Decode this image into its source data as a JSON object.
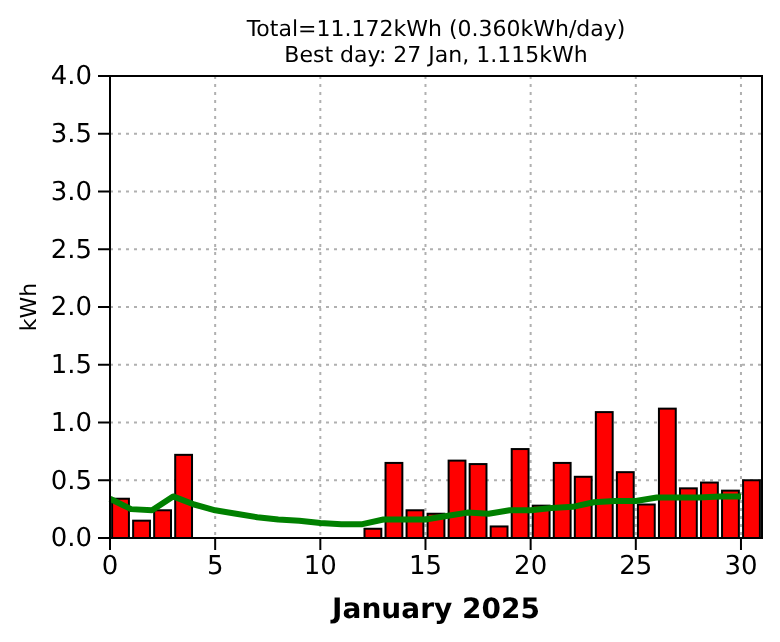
{
  "chart_data": {
    "type": "bar",
    "title": "Total=11.172kWh (0.360kWh/day)",
    "subtitle": "Best day: 27 Jan, 1.115kWh",
    "xlabel": "January 2025",
    "ylabel": "kWh",
    "xlim": [
      0,
      31
    ],
    "xticks": [
      0,
      5,
      10,
      15,
      20,
      25,
      30
    ],
    "ylim": [
      0,
      4
    ],
    "yticks": [
      {
        "value": 0,
        "label": "0.0"
      },
      {
        "value": 0.5,
        "label": "0.5"
      },
      {
        "value": 1,
        "label": "1.0"
      },
      {
        "value": 1.5,
        "label": "1.5"
      },
      {
        "value": 2,
        "label": "2.0"
      },
      {
        "value": 2.5,
        "label": "2.5"
      },
      {
        "value": 3,
        "label": "3.0"
      },
      {
        "value": 3.5,
        "label": "3.5"
      },
      {
        "value": 4,
        "label": "4.0"
      }
    ],
    "grid": true,
    "series": [
      {
        "color": "#ff0000",
        "x": [
          0.5,
          1.5,
          2.5,
          3.5,
          4.5,
          5.5,
          6.5,
          7.5,
          8.5,
          9.5,
          10.5,
          11.5,
          12.5,
          13.5,
          14.5,
          15.5,
          16.5,
          17.5,
          18.5,
          19.5,
          20.5,
          21.5,
          22.5,
          23.5,
          24.5,
          25.5,
          26.5,
          27.5,
          28.5,
          29.5,
          30.5
        ],
        "values": [
          0.34,
          0.15,
          0.24,
          0.72,
          0,
          0,
          0,
          0,
          0,
          0,
          0,
          0,
          0.08,
          0.65,
          0.24,
          0.21,
          0.67,
          0.64,
          0.1,
          0.77,
          0.28,
          0.65,
          0.53,
          1.09,
          0.57,
          0.29,
          1.12,
          0.43,
          0.48,
          0.41,
          0.5
        ]
      },
      {
        "type": "line",
        "color": "#008000",
        "marker": "none",
        "line_style": "solid",
        "x": [
          0,
          1,
          2,
          3,
          4,
          5,
          6,
          7,
          8,
          9,
          10,
          11,
          12,
          13,
          14,
          15,
          16,
          17,
          18,
          19,
          20,
          21,
          22,
          23,
          24,
          25,
          26,
          27,
          28,
          29,
          30
        ],
        "values": [
          0.34,
          0.25,
          0.24,
          0.36,
          0.29,
          0.24,
          0.21,
          0.18,
          0.16,
          0.15,
          0.13,
          0.12,
          0.12,
          0.16,
          0.16,
          0.16,
          0.19,
          0.22,
          0.21,
          0.24,
          0.24,
          0.26,
          0.27,
          0.31,
          0.32,
          0.32,
          0.35,
          0.35,
          0.35,
          0.36,
          0.36
        ]
      }
    ]
  }
}
